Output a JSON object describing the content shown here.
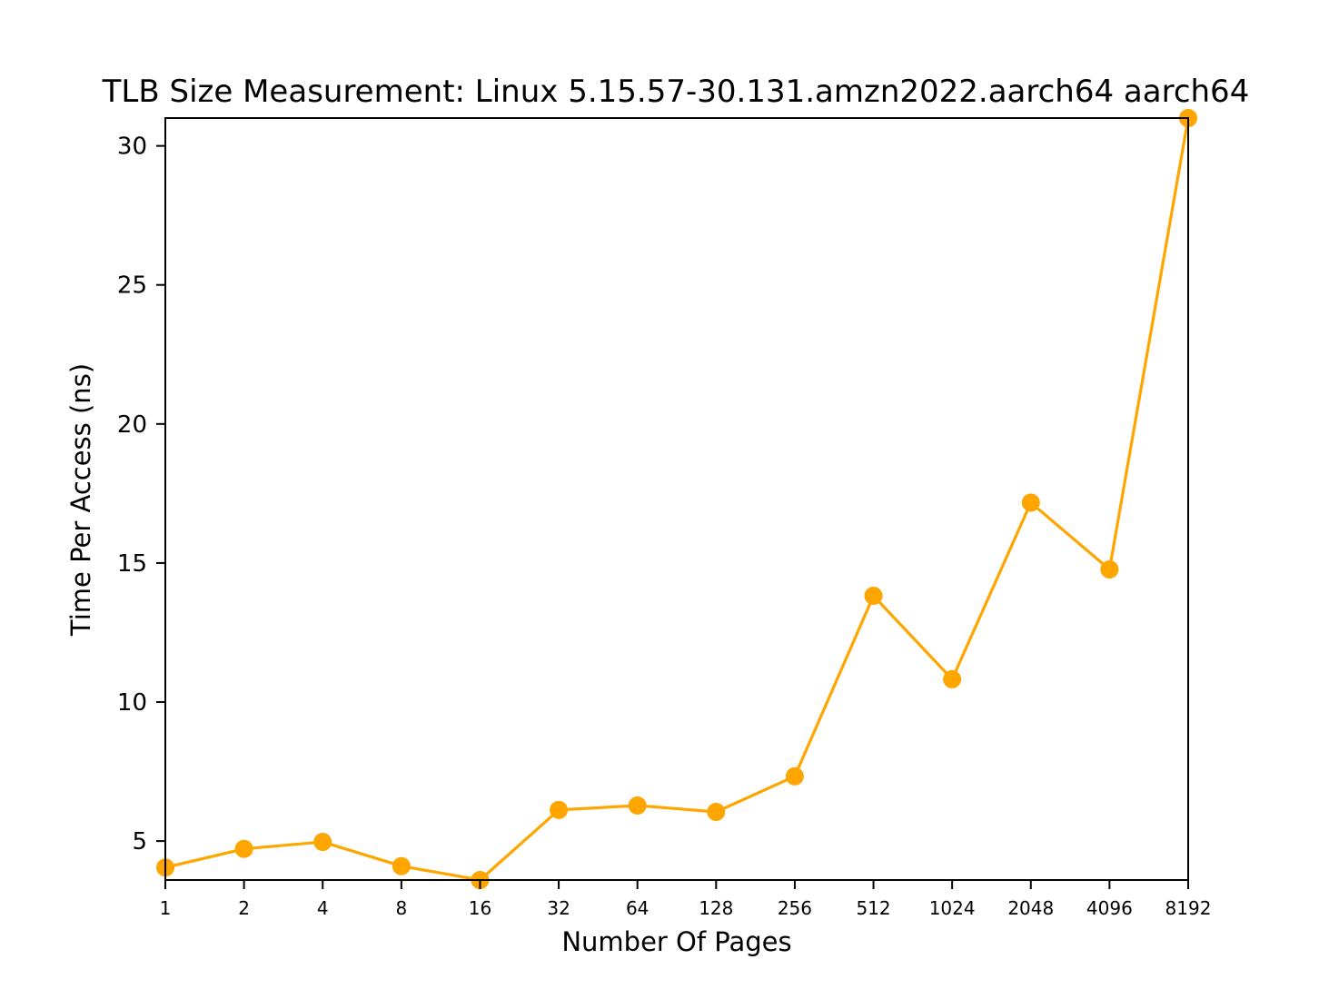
{
  "chart_data": {
    "type": "line",
    "title": "TLB Size Measurement: Linux 5.15.57-30.131.amzn2022.aarch64 aarch64",
    "xlabel": "Number Of Pages",
    "ylabel": "Time Per Access (ns)",
    "x_scale": "log2",
    "x": [
      1,
      2,
      4,
      8,
      16,
      32,
      64,
      128,
      256,
      512,
      1024,
      2048,
      4096,
      8192
    ],
    "x_tick_labels": [
      "1",
      "2",
      "4",
      "8",
      "16",
      "32",
      "64",
      "128",
      "256",
      "512",
      "1024",
      "2048",
      "4096",
      "8192"
    ],
    "y_ticks": [
      5,
      10,
      15,
      20,
      25,
      30
    ],
    "y_tick_labels": [
      "5",
      "10",
      "15",
      "20",
      "25",
      "30"
    ],
    "xlim": [
      1,
      8192
    ],
    "ylim": [
      3.6,
      31
    ],
    "grid": false,
    "series": [
      {
        "color": "#ffa500",
        "marker": "circle",
        "values": [
          4.05,
          4.72,
          4.97,
          4.1,
          3.6,
          6.12,
          6.28,
          6.05,
          7.33,
          13.82,
          10.82,
          17.17,
          14.77,
          31.0
        ]
      }
    ]
  }
}
